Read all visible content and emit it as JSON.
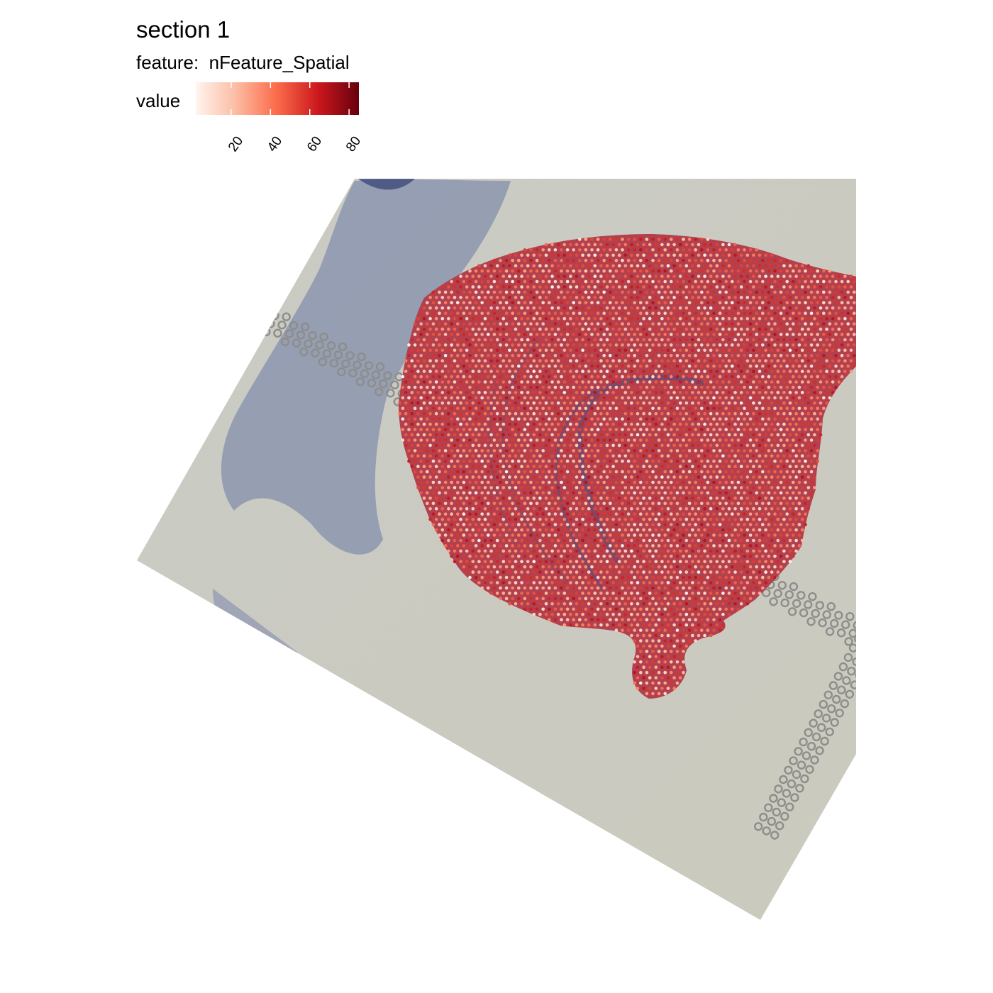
{
  "header": {
    "title": "section 1",
    "feature_line": "feature:  nFeature_Spatial"
  },
  "legend": {
    "label": "value",
    "ticks": [
      20,
      40,
      60,
      80
    ],
    "range": [
      2,
      85
    ],
    "colors": [
      "#fff5f0",
      "#fcbba1",
      "#fb6a4a",
      "#cb181d",
      "#67000d"
    ]
  },
  "chart_data": {
    "type": "scatter",
    "title": "section 1",
    "subtitle": "feature:  nFeature_Spatial",
    "color_legend": "value",
    "color_range": [
      2,
      85
    ],
    "color_ticks": [
      20,
      40,
      60,
      80
    ],
    "colormap_colors": [
      "#fff5f0",
      "#fcbba1",
      "#fb6a4a",
      "#cb181d",
      "#67000d"
    ],
    "tissue_color": "#b2414f",
    "background_color": "#cfcfc3",
    "stain_color": "#6b78a3",
    "fiducial_color": "#8a8a8a"
  }
}
